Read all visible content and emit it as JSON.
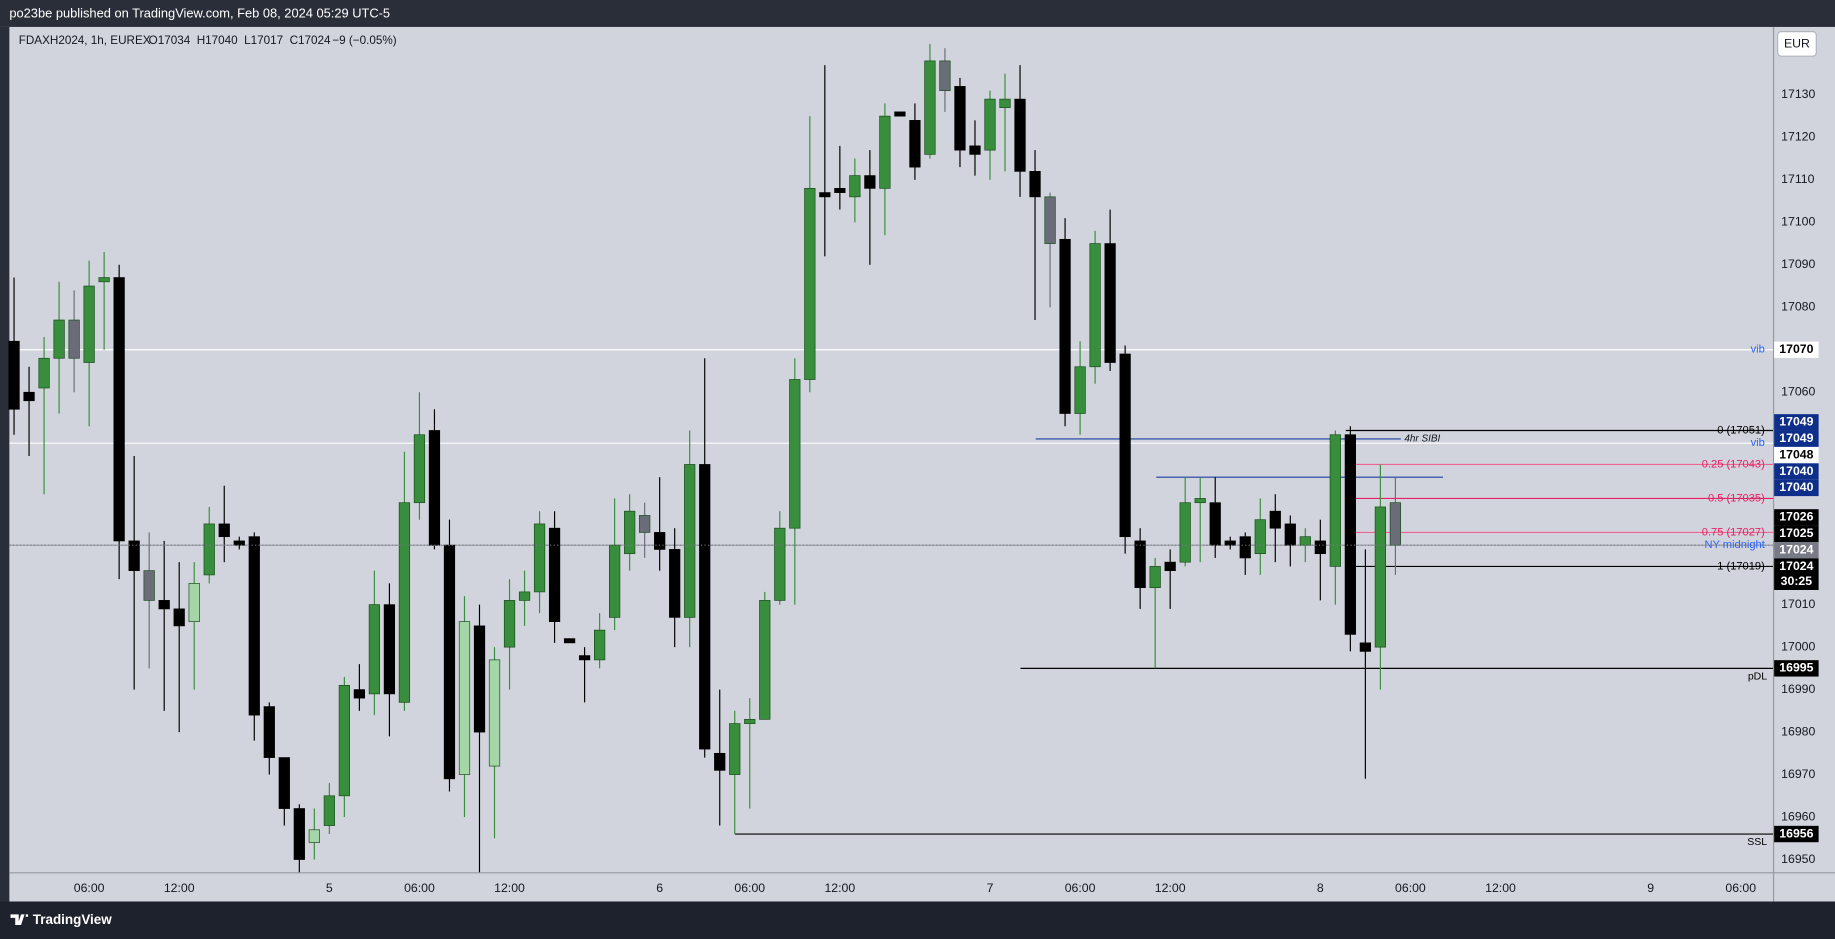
{
  "header": {
    "text": "po23be published on TradingView.com, Feb 08, 2024 05:29 UTC-5"
  },
  "footer": {
    "brand": "TradingView"
  },
  "chart_data": {
    "type": "candlestick",
    "symbol": "FDAXH2024, 1h, EUREX",
    "ohlc_readout": "O17034  H17040  L17017  C17024",
    "change": "−9 (−0.05%)",
    "currency": "EUR",
    "countdown": "30:25",
    "categories": [
      null,
      null,
      null,
      null,
      null,
      "06:00",
      null,
      null,
      null,
      null,
      null,
      "12:00",
      null,
      null,
      null,
      null,
      null,
      null,
      null,
      null,
      null,
      "5",
      null,
      null,
      null,
      null,
      null,
      "06:00",
      null,
      null,
      null,
      null,
      null,
      "12:00",
      null,
      null,
      null,
      null,
      null,
      null,
      null,
      null,
      null,
      "6",
      null,
      null,
      null,
      null,
      null,
      "06:00",
      null,
      null,
      null,
      null,
      null,
      "12:00",
      null,
      null,
      null,
      null,
      null,
      null,
      null,
      null,
      null,
      "7",
      null,
      null,
      null,
      null,
      null,
      "06:00",
      null,
      null,
      null,
      null,
      null,
      "12:00",
      null,
      null,
      null,
      null,
      null,
      null,
      null,
      null,
      null,
      "8",
      null,
      null,
      null,
      null,
      null,
      "06:00",
      null,
      null,
      null,
      null,
      null,
      "12:00",
      null,
      null,
      null,
      null,
      null,
      null,
      null,
      null,
      null,
      "9",
      null,
      null,
      null,
      null,
      null,
      "06:00",
      null
    ],
    "open": [
      17072,
      17060,
      17061,
      17068,
      17077,
      17067,
      17086,
      17087,
      17025,
      17018,
      17011,
      17009,
      17006,
      17017,
      17029,
      17025,
      17026,
      16986,
      16974,
      16962,
      16954,
      16958,
      16965,
      16990,
      16989,
      17010,
      16987,
      17034,
      17051,
      17024,
      16970,
      17005,
      16972,
      17000,
      17011,
      17013,
      17028,
      17002,
      16998,
      16997,
      17007,
      17022,
      17031,
      17027,
      17023,
      17007,
      17043,
      16975,
      16970,
      16982,
      16983,
      17011,
      17028,
      17063,
      17107,
      17108,
      17106,
      17111,
      17108,
      17126,
      17124,
      17116,
      17138,
      17132,
      17118,
      17117,
      17127,
      17129,
      17112,
      17106,
      17096,
      17055,
      17066,
      17095,
      17069,
      17025,
      17014,
      17020,
      17020,
      17034,
      17034,
      17025,
      17026,
      17022,
      17032,
      17029,
      17024,
      17025,
      17019,
      17050,
      17001,
      17000,
      17034,
      null,
      null,
      null,
      null,
      null,
      null,
      null,
      null,
      null,
      null,
      null,
      null,
      null,
      null,
      null,
      null,
      null,
      null,
      null,
      null,
      null,
      null,
      null,
      null
    ],
    "high": [
      17087,
      17066,
      17073,
      17086,
      17084,
      17091,
      17093,
      17090,
      17045,
      17027,
      17025,
      17020,
      17020,
      17033,
      17038,
      17026,
      17027,
      16987,
      16974,
      16963,
      16962,
      16968,
      16993,
      16996,
      17018,
      17015,
      17046,
      17060,
      17056,
      17030,
      17012,
      17010,
      17000,
      17016,
      17018,
      17032,
      17032,
      17002,
      17000,
      17008,
      17035,
      17036,
      17034,
      17040,
      17028,
      17051,
      17068,
      16990,
      16985,
      16988,
      17013,
      17032,
      17068,
      17125,
      17137,
      17118,
      17115,
      17117,
      17128,
      17126,
      17128,
      17142,
      17141,
      17134,
      17124,
      17131,
      17135,
      17137,
      17117,
      17107,
      17101,
      17072,
      17098,
      17103,
      17071,
      17028,
      17021,
      17023,
      17040,
      17040,
      17040,
      17026,
      17027,
      17035,
      17036,
      17031,
      17028,
      17030,
      17051,
      17052,
      17023,
      17043,
      17040,
      null,
      null,
      null,
      null,
      null,
      null,
      null,
      null,
      null,
      null,
      null,
      null,
      null,
      null,
      null,
      null,
      null,
      null,
      null,
      null,
      null,
      null,
      null,
      null
    ],
    "low": [
      17050,
      17045,
      17036,
      17055,
      17060,
      17052,
      17070,
      17016,
      16990,
      16995,
      16985,
      16980,
      16990,
      17015,
      17020,
      17023,
      16978,
      16970,
      16958,
      16947,
      16950,
      16956,
      16960,
      16985,
      16984,
      16979,
      16985,
      17030,
      17023,
      16966,
      16960,
      16947,
      16955,
      16990,
      17005,
      17008,
      17001,
      17001,
      16987,
      16995,
      17004,
      17018,
      17021,
      17018,
      17000,
      17000,
      16974,
      16958,
      16956,
      16962,
      16983,
      17010,
      17010,
      17060,
      17092,
      17103,
      17100,
      17090,
      17097,
      17125,
      17110,
      17115,
      17126,
      17113,
      17111,
      17110,
      17112,
      17106,
      17077,
      17080,
      17052,
      17050,
      17062,
      17065,
      17022,
      17009,
      16995,
      17009,
      17019,
      17020,
      17021,
      17023,
      17017,
      17017,
      17020,
      17019,
      17020,
      17011,
      17010,
      16999,
      16969,
      16990,
      17017,
      null,
      null,
      null,
      null,
      null,
      null,
      null,
      null,
      null,
      null,
      null,
      null,
      null,
      null,
      null,
      null,
      null,
      null,
      null,
      null,
      null,
      null,
      null,
      null
    ],
    "close": [
      17056,
      17058,
      17068,
      17077,
      17068,
      17085,
      17087,
      17025,
      17018,
      17011,
      17009,
      17005,
      17015,
      17029,
      17026,
      17024,
      16984,
      16974,
      16962,
      16950,
      16957,
      16965,
      16991,
      16988,
      17010,
      16989,
      17034,
      17050,
      17024,
      16969,
      17006,
      16980,
      16997,
      17011,
      17013,
      17029,
      17006,
      17001,
      16997,
      17004,
      17024,
      17032,
      17027,
      17023,
      17007,
      17043,
      16976,
      16971,
      16982,
      16983,
      17011,
      17028,
      17063,
      17108,
      17106,
      17107,
      17111,
      17108,
      17125,
      17125,
      17113,
      17138,
      17131,
      17117,
      17116,
      17129,
      17129,
      17112,
      17106,
      17095,
      17055,
      17066,
      17095,
      17067,
      17026,
      17014,
      17019,
      17018,
      17034,
      17035,
      17024,
      17024,
      17021,
      17030,
      17028,
      17024,
      17026,
      17022,
      17050,
      17003,
      16999,
      17033,
      17024,
      null,
      null,
      null,
      null,
      null,
      null,
      null,
      null,
      null,
      null,
      null,
      null,
      null,
      null,
      null,
      null,
      null,
      null,
      null,
      null,
      null,
      null,
      null,
      null
    ],
    "candle_colors": [
      "#000000",
      "#000000",
      "#388e3c",
      "#388e3c",
      "#6a6d78",
      "#388e3c",
      "#388e3c",
      "#000000",
      "#000000",
      "#6a6d78",
      "#000000",
      "#000000",
      "#a5d6a7",
      "#388e3c",
      "#000000",
      "#000000",
      "#000000",
      "#000000",
      "#000000",
      "#000000",
      "#a5d6a7",
      "#388e3c",
      "#388e3c",
      "#000000",
      "#388e3c",
      "#000000",
      "#388e3c",
      "#388e3c",
      "#000000",
      "#000000",
      "#a5d6a7",
      "#000000",
      "#a5d6a7",
      "#388e3c",
      "#388e3c",
      "#388e3c",
      "#000000",
      "#000000",
      "#000000",
      "#388e3c",
      "#388e3c",
      "#388e3c",
      "#6a6d78",
      "#000000",
      "#000000",
      "#388e3c",
      "#000000",
      "#000000",
      "#388e3c",
      "#388e3c",
      "#388e3c",
      "#388e3c",
      "#388e3c",
      "#388e3c",
      "#000000",
      "#000000",
      "#388e3c",
      "#000000",
      "#388e3c",
      "#000000",
      "#000000",
      "#388e3c",
      "#6a6d78",
      "#000000",
      "#000000",
      "#388e3c",
      "#388e3c",
      "#000000",
      "#000000",
      "#6a6d78",
      "#000000",
      "#388e3c",
      "#388e3c",
      "#000000",
      "#000000",
      "#000000",
      "#388e3c",
      "#000000",
      "#388e3c",
      "#388e3c",
      "#000000",
      "#000000",
      "#000000",
      "#388e3c",
      "#000000",
      "#000000",
      "#388e3c",
      "#000000",
      "#388e3c",
      "#000000",
      "#000000",
      "#388e3c",
      "#6a6d78",
      null,
      null,
      null,
      null,
      null,
      null,
      null,
      null,
      null,
      null,
      null,
      null,
      null,
      null,
      null,
      null,
      null,
      null,
      null,
      null,
      null,
      null,
      null,
      null
    ],
    "ylim": [
      16947,
      17146
    ],
    "yticks": [
      16950,
      16960,
      16970,
      16980,
      16990,
      17000,
      17010,
      17060,
      17080,
      17090,
      17100,
      17110,
      17120,
      17130
    ],
    "grid": false,
    "levels": [
      {
        "label": "vib",
        "value": 17070,
        "color": "#ffffff",
        "text_color": "#2962ff"
      },
      {
        "label": "vib",
        "value": 17048,
        "color": "#ffffff",
        "text_color": "#2962ff"
      },
      {
        "label": "4hr SIBI",
        "value": 17049,
        "color": "#1a3fa0",
        "text_color": "#131722"
      },
      {
        "value": 17040,
        "color": "#1a3fa0"
      },
      {
        "label": "0 (17051)",
        "value": 17051,
        "color": "#000000",
        "text_color": "#000000"
      },
      {
        "label": "0.25 (17043)",
        "value": 17043,
        "color": "#f06292",
        "text_color": "#e91e63"
      },
      {
        "label": "0.5 (17035)",
        "value": 17035,
        "color": "#e91e63",
        "text_color": "#e91e63"
      },
      {
        "label": "0.75 (17027)",
        "value": 17027,
        "color": "#f06292",
        "text_color": "#e91e63"
      },
      {
        "label": "1 (17019)",
        "value": 17019,
        "color": "#000000",
        "text_color": "#000000"
      },
      {
        "label": "pDL",
        "value": 16995,
        "color": "#000000",
        "text_color": "#000000"
      },
      {
        "label": "SSL",
        "value": 16956,
        "color": "#000000",
        "text_color": "#000000"
      },
      {
        "label": "NY midnight",
        "value": 17024,
        "color": "#9598a1",
        "text_color": "#2962ff"
      }
    ],
    "price_badges": [
      {
        "value": 17070,
        "bg": "#ffffff",
        "fg": "#000000"
      },
      {
        "value": 17049,
        "bg": "#0d2f8a",
        "fg": "#ffffff"
      },
      {
        "value": 17049,
        "bg": "#0d2f8a",
        "fg": "#ffffff"
      },
      {
        "value": 17048,
        "bg": "#ffffff",
        "fg": "#000000"
      },
      {
        "value": 17040,
        "bg": "#0d2f8a",
        "fg": "#ffffff"
      },
      {
        "value": 17040,
        "bg": "#0d2f8a",
        "fg": "#ffffff"
      },
      {
        "value": 17026,
        "bg": "#000000",
        "fg": "#ffffff"
      },
      {
        "value": 17025,
        "bg": "#000000",
        "fg": "#ffffff"
      },
      {
        "value": 17024,
        "bg": "#787b86",
        "fg": "#ffffff"
      },
      {
        "value": 17024,
        "bg": "#000000",
        "fg": "#ffffff"
      },
      {
        "value": 16995,
        "bg": "#000000",
        "fg": "#ffffff"
      },
      {
        "value": 16956,
        "bg": "#000000",
        "fg": "#ffffff"
      }
    ]
  }
}
